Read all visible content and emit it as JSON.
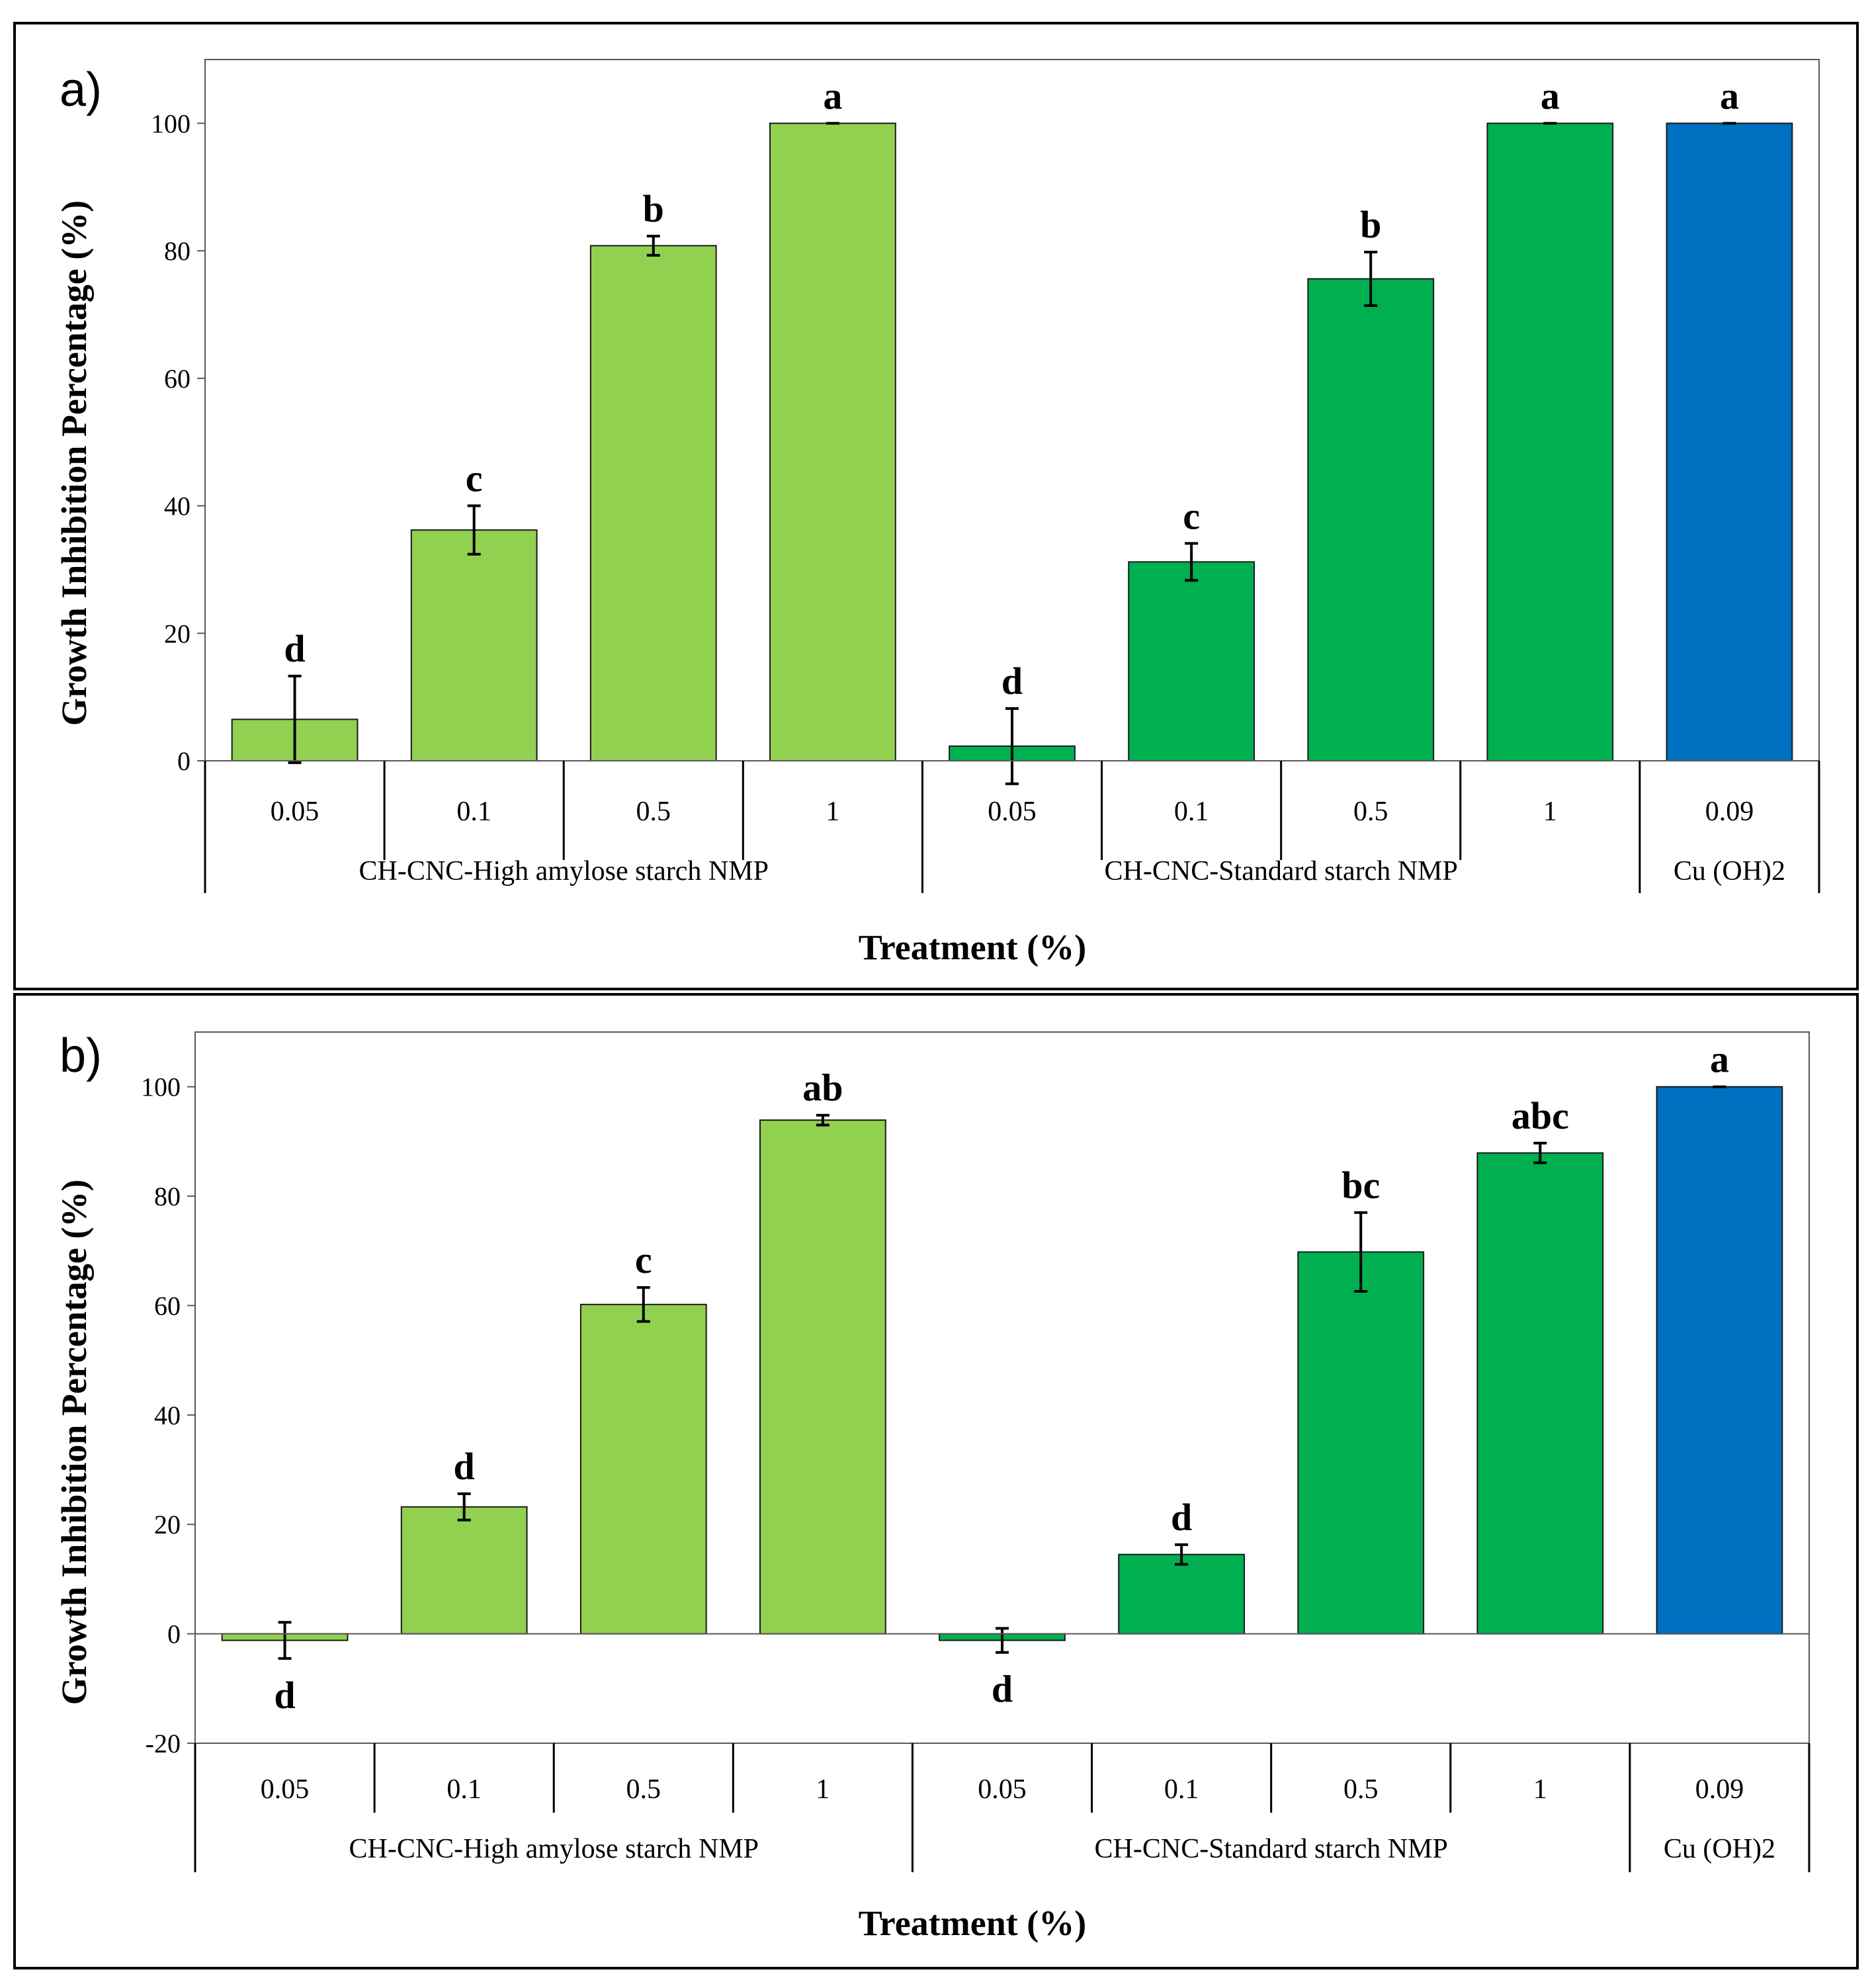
{
  "figure": {
    "colors": {
      "high_amylose": "#92d050",
      "standard": "#00b050",
      "control": "#0070c0",
      "frame": "#000000",
      "bar_edge": "#1a1a1a"
    }
  },
  "chart_data": [
    {
      "panel": "a)",
      "type": "bar",
      "title": "",
      "xlabel": "Treatment (%)",
      "ylabel": "Growth Inhibition Percentage (%)",
      "ylim": [
        0,
        110
      ],
      "yticks": [
        0,
        20,
        40,
        60,
        80,
        100
      ],
      "grid": false,
      "groups": [
        {
          "label": "CH-CNC-High amylose starch NMP",
          "categories": [
            "0.05",
            "0.1",
            "0.5",
            "1"
          ],
          "color_key": "high_amylose"
        },
        {
          "label": "CH-CNC-Standard starch NMP",
          "categories": [
            "0.05",
            "0.1",
            "0.5",
            "1"
          ],
          "color_key": "standard"
        },
        {
          "label": "Cu (OH)2",
          "categories": [
            "0.09"
          ],
          "color_key": "control"
        }
      ],
      "values": [
        6.5,
        36.2,
        80.8,
        100,
        2.3,
        31.2,
        75.6,
        100,
        100
      ],
      "errors": [
        6.8,
        3.8,
        1.5,
        0,
        5.9,
        2.9,
        4.2,
        0,
        0
      ],
      "letters": [
        "d",
        "c",
        "b",
        "a",
        "d",
        "c",
        "b",
        "a",
        "a"
      ]
    },
    {
      "panel": "b)",
      "type": "bar",
      "title": "",
      "xlabel": "Treatment (%)",
      "ylabel": "Growth Inhibition Percentage (%)",
      "ylim": [
        -20,
        110
      ],
      "yticks": [
        -20,
        0,
        20,
        40,
        60,
        80,
        100
      ],
      "grid": false,
      "groups": [
        {
          "label": "CH-CNC-High amylose starch NMP",
          "categories": [
            "0.05",
            "0.1",
            "0.5",
            "1"
          ],
          "color_key": "high_amylose"
        },
        {
          "label": "CH-CNC-Standard starch NMP",
          "categories": [
            "0.05",
            "0.1",
            "0.5",
            "1"
          ],
          "color_key": "standard"
        },
        {
          "label": "Cu (OH)2",
          "categories": [
            "0.09"
          ],
          "color_key": "control"
        }
      ],
      "values": [
        -1.2,
        23.2,
        60.2,
        93.9,
        -1.2,
        14.5,
        69.8,
        87.9,
        100
      ],
      "errors": [
        3.3,
        2.4,
        3.1,
        0.9,
        2.2,
        1.8,
        7.2,
        1.8,
        0
      ],
      "letters": [
        "d",
        "d",
        "c",
        "ab",
        "d",
        "d",
        "bc",
        "abc",
        "a"
      ]
    }
  ]
}
